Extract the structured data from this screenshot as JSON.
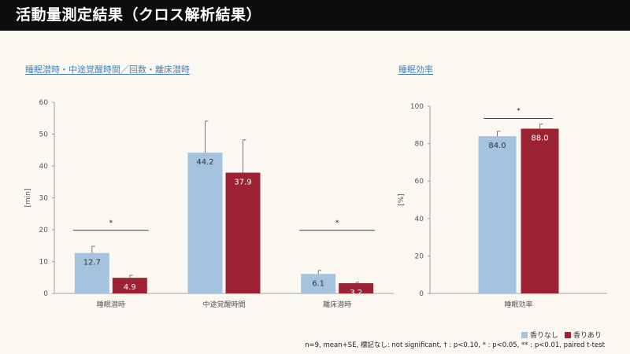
{
  "header": {
    "title": "活動量測定結果（クロス解析結果）"
  },
  "colors": {
    "series1": "#a5c3df",
    "series2": "#9c2234",
    "axis": "#8a8a8a",
    "header_bg": "#0d0d0d"
  },
  "chart_data": [
    {
      "type": "bar",
      "title": "睡眠潜時・中途覚醒時間／回数・離床潜時",
      "ylabel": "[min]",
      "ylim": [
        0,
        60
      ],
      "yticks": [
        0,
        10,
        20,
        30,
        40,
        50,
        60
      ],
      "categories": [
        "睡眠潜時",
        "中途覚醒時間",
        "離床潜時"
      ],
      "series": [
        {
          "name": "香りなし",
          "values": [
            12.7,
            44.2,
            6.1
          ],
          "value_labels": [
            "12.7",
            "44.2",
            "6.1"
          ],
          "se": [
            2.1,
            9.9,
            1.1
          ]
        },
        {
          "name": "香りあり",
          "values": [
            4.9,
            37.9,
            3.2
          ],
          "value_labels": [
            "4.9",
            "37.9",
            "3.2"
          ],
          "se": [
            0.8,
            10.3,
            0.3
          ]
        }
      ],
      "significance": [
        {
          "category_index": 0,
          "mark": "*",
          "level": 19.8
        },
        {
          "category_index": 2,
          "mark": "*",
          "level": 19.8
        }
      ]
    },
    {
      "type": "bar",
      "title": "睡眠効率",
      "ylabel": "[%]",
      "ylim": [
        0,
        100
      ],
      "yticks": [
        0,
        20,
        40,
        60,
        80,
        100
      ],
      "categories": [
        "睡眠効率"
      ],
      "series": [
        {
          "name": "香りなし",
          "values": [
            84.0
          ],
          "value_labels": [
            "84.0"
          ],
          "se": [
            2.6
          ]
        },
        {
          "name": "香りあり",
          "values": [
            88.0
          ],
          "value_labels": [
            "88.0"
          ],
          "se": [
            2.4
          ]
        }
      ],
      "significance": [
        {
          "category_index": 0,
          "mark": "*",
          "level": 93.5
        }
      ]
    }
  ],
  "legend": {
    "items": [
      "香りなし",
      "香りあり"
    ]
  },
  "footnote": "n=9, mean+SE, 標記なし: not significant, † : p<0.10, * : p<0.05, ** : p<0.01, paired t-test"
}
